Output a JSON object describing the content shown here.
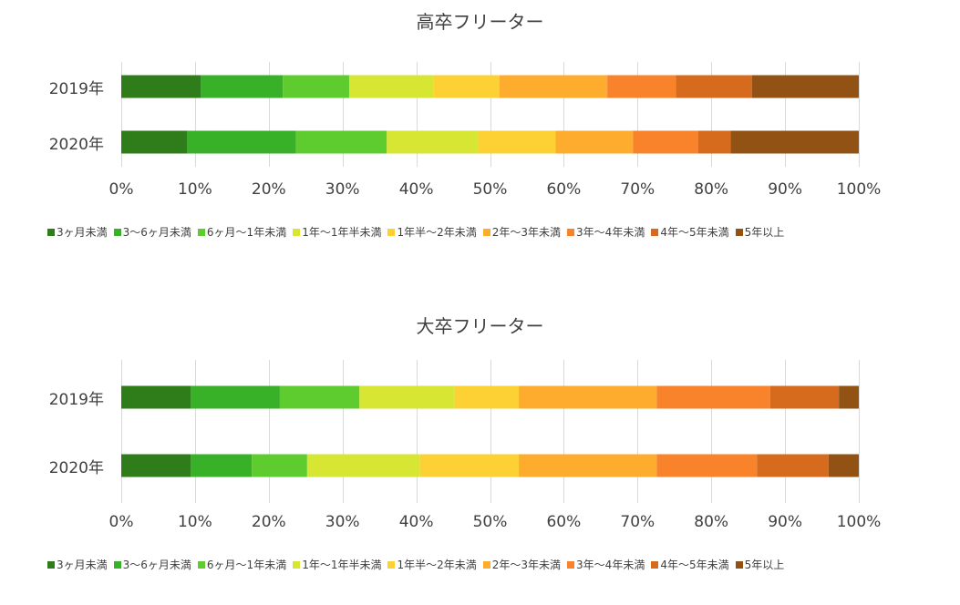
{
  "colors": [
    "#2e7d1a",
    "#38b027",
    "#5ecb2e",
    "#d6e633",
    "#fdd133",
    "#fdac2e",
    "#f8832b",
    "#d66a1d",
    "#915214"
  ],
  "legend": [
    "3ヶ月未満",
    "3〜6ヶ月未満",
    "6ヶ月〜1年未満",
    "1年〜1年半未満",
    "1年半〜2年未満",
    "2年〜3年未満",
    "3年〜4年未満",
    "4年〜5年未満",
    "5年以上"
  ],
  "chart_data": [
    {
      "type": "bar",
      "orientation": "horizontal",
      "stacked": "percent",
      "title": "高卒フリーター",
      "categories": [
        "2019年",
        "2020年"
      ],
      "x_ticks": [
        "0%",
        "10%",
        "20%",
        "30%",
        "40%",
        "50%",
        "60%",
        "70%",
        "80%",
        "90%",
        "100%"
      ],
      "xlim": [
        0,
        100
      ],
      "grid": "vertical",
      "legend_position": "bottom",
      "series": [
        {
          "name": "3ヶ月未満",
          "values": [
            10.8,
            8.9
          ]
        },
        {
          "name": "3〜6ヶ月未満",
          "values": [
            11.1,
            14.8
          ]
        },
        {
          "name": "6ヶ月〜1年未満",
          "values": [
            9.0,
            12.3
          ]
        },
        {
          "name": "1年〜1年半未満",
          "values": [
            11.4,
            12.4
          ]
        },
        {
          "name": "1年半〜2年未満",
          "values": [
            9.0,
            10.5
          ]
        },
        {
          "name": "2年〜3年未満",
          "values": [
            14.6,
            10.5
          ]
        },
        {
          "name": "3年〜4年未満",
          "values": [
            9.3,
            8.8
          ]
        },
        {
          "name": "4年〜5年未満",
          "values": [
            10.3,
            4.4
          ]
        },
        {
          "name": "5年以上",
          "values": [
            14.5,
            17.4
          ]
        }
      ]
    },
    {
      "type": "bar",
      "orientation": "horizontal",
      "stacked": "percent",
      "title": "大卒フリーター",
      "categories": [
        "2019年",
        "2020年"
      ],
      "x_ticks": [
        "0%",
        "10%",
        "20%",
        "30%",
        "40%",
        "50%",
        "60%",
        "70%",
        "80%",
        "90%",
        "100%"
      ],
      "xlim": [
        0,
        100
      ],
      "grid": "vertical",
      "legend_position": "bottom",
      "series": [
        {
          "name": "3ヶ月未満",
          "values": [
            9.4,
            9.4
          ]
        },
        {
          "name": "3〜6ヶ月未満",
          "values": [
            12.1,
            8.3
          ]
        },
        {
          "name": "6ヶ月〜1年未満",
          "values": [
            10.8,
            7.5
          ]
        },
        {
          "name": "1年〜1年半未満",
          "values": [
            12.9,
            15.3
          ]
        },
        {
          "name": "1年半〜2年未満",
          "values": [
            8.7,
            13.4
          ]
        },
        {
          "name": "2年〜3年未満",
          "values": [
            18.7,
            18.7
          ]
        },
        {
          "name": "3年〜4年未満",
          "values": [
            15.4,
            13.6
          ]
        },
        {
          "name": "4年〜5年未満",
          "values": [
            9.3,
            9.7
          ]
        },
        {
          "name": "5年以上",
          "values": [
            2.7,
            4.1
          ]
        }
      ]
    }
  ]
}
